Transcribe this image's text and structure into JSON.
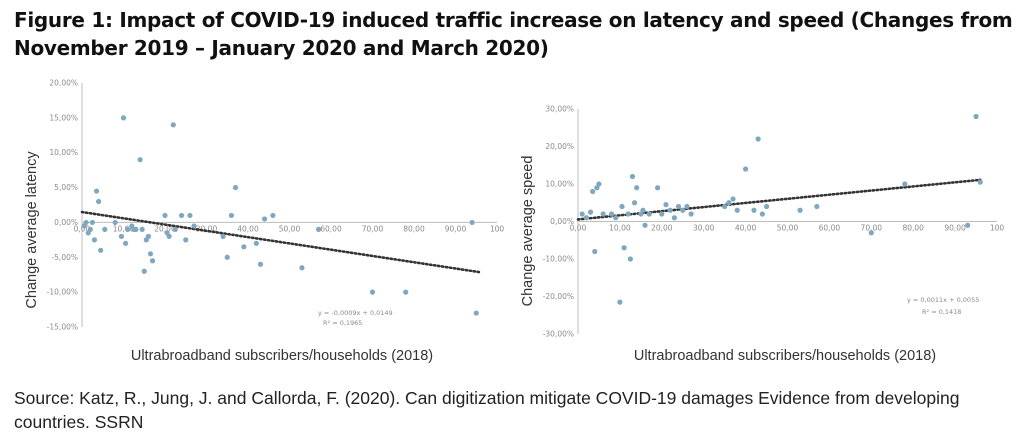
{
  "figure_title": "Figure 1: Impact of COVID-19 induced traffic increase on latency and speed  (Changes from November 2019 – January 2020 and March 2020)",
  "source_text": "Source: Katz, R., Jung, J. and Callorda, F. (2020). Can digitization mitigate COVID-19 damages Evidence from developing countries. SSRN",
  "colors": {
    "point": "#7fa7bf",
    "trend": "#333333",
    "axis": "#bdbdbd",
    "text": "#8a8a8a"
  },
  "chart_data": [
    {
      "type": "scatter",
      "ylabel": "Change average latency",
      "xlabel": "Ultrabroadband  subscribers/households  (2018)",
      "xlim": [
        0,
        100
      ],
      "ylim": [
        -15,
        20
      ],
      "x_ticks": [
        "0,00",
        "10,00",
        "20,00",
        "30,00",
        "40,00",
        "50,00",
        "60,00",
        "70,00",
        "80,00",
        "90,00",
        "100"
      ],
      "y_ticks": [
        "20,00%",
        "15,00%",
        "10,00%",
        "5,00%",
        "0,00%",
        "-5,00%",
        "-10,00%",
        "-15,00%"
      ],
      "grid": false,
      "trendline": {
        "slope": -0.0009,
        "intercept": 0.0149,
        "equation": "y = -0,0009x + 0,0149",
        "r2": "R² = 0,1965"
      },
      "points": [
        [
          0.5,
          -0.5
        ],
        [
          1,
          0
        ],
        [
          1.5,
          -1.5
        ],
        [
          2,
          -1
        ],
        [
          2.5,
          0
        ],
        [
          3,
          -2.5
        ],
        [
          3.5,
          4.5
        ],
        [
          4,
          3
        ],
        [
          4.5,
          -4
        ],
        [
          5.5,
          -1
        ],
        [
          8,
          0
        ],
        [
          9.5,
          -2
        ],
        [
          10,
          15
        ],
        [
          10.5,
          -3
        ],
        [
          11,
          -1
        ],
        [
          12,
          -0.5
        ],
        [
          12.5,
          -1
        ],
        [
          13,
          -1
        ],
        [
          14,
          9
        ],
        [
          14.5,
          -1
        ],
        [
          15,
          -7
        ],
        [
          15.5,
          -2.5
        ],
        [
          16,
          -2
        ],
        [
          16.5,
          -4.5
        ],
        [
          17,
          -5.5
        ],
        [
          20,
          1
        ],
        [
          20.5,
          -1.5
        ],
        [
          21,
          -2
        ],
        [
          22,
          14
        ],
        [
          22.5,
          -1
        ],
        [
          24,
          1
        ],
        [
          25,
          -2.5
        ],
        [
          26,
          1
        ],
        [
          27,
          -0.5
        ],
        [
          34,
          -2
        ],
        [
          35,
          -5
        ],
        [
          36,
          1
        ],
        [
          37,
          5
        ],
        [
          39,
          -3.5
        ],
        [
          42,
          -3
        ],
        [
          43,
          -6
        ],
        [
          44,
          0.5
        ],
        [
          46,
          1
        ],
        [
          53,
          -6.5
        ],
        [
          57,
          -1
        ],
        [
          70,
          -10
        ],
        [
          78,
          -10
        ],
        [
          94,
          0
        ],
        [
          95,
          -13
        ]
      ]
    },
    {
      "type": "scatter",
      "ylabel": "Change  average speed",
      "xlabel": "Ultrabroadband  subscribers/households  (2018)",
      "xlim": [
        0,
        100
      ],
      "ylim": [
        -30,
        30
      ],
      "x_ticks": [
        "0,00",
        "10,00",
        "20,00",
        "30,00",
        "40,00",
        "50,00",
        "60,00",
        "70,00",
        "80,00",
        "90,00",
        "100"
      ],
      "y_ticks": [
        "30,00%",
        "20,00%",
        "10,00%",
        "0,00%",
        "-10,00%",
        "-20,00%",
        "-30,00%"
      ],
      "grid": false,
      "trendline": {
        "slope": 0.0011,
        "intercept": 0.0055,
        "equation": "y = 0,0011x + 0,0055",
        "r2": "R² = 0,1418"
      },
      "points": [
        [
          1,
          2
        ],
        [
          2,
          1
        ],
        [
          3,
          2.5
        ],
        [
          3.5,
          8
        ],
        [
          4,
          -8
        ],
        [
          4.5,
          9
        ],
        [
          5,
          10
        ],
        [
          6,
          2
        ],
        [
          8,
          2
        ],
        [
          9,
          1
        ],
        [
          10,
          -21.5
        ],
        [
          10.5,
          4
        ],
        [
          11,
          -7
        ],
        [
          12,
          2
        ],
        [
          12.5,
          -10
        ],
        [
          13,
          12
        ],
        [
          13.5,
          5
        ],
        [
          14,
          9
        ],
        [
          15,
          2
        ],
        [
          15.5,
          3
        ],
        [
          16,
          -1
        ],
        [
          17,
          2
        ],
        [
          19,
          9
        ],
        [
          20,
          2
        ],
        [
          21,
          4.5
        ],
        [
          22,
          3
        ],
        [
          23,
          1
        ],
        [
          24,
          4
        ],
        [
          25,
          3
        ],
        [
          26,
          4
        ],
        [
          27,
          2
        ],
        [
          35,
          4
        ],
        [
          36,
          5
        ],
        [
          37,
          6
        ],
        [
          38,
          3
        ],
        [
          40,
          14
        ],
        [
          42,
          3
        ],
        [
          43,
          22
        ],
        [
          44,
          2
        ],
        [
          45,
          4
        ],
        [
          53,
          3
        ],
        [
          57,
          4
        ],
        [
          70,
          -3
        ],
        [
          78,
          10
        ],
        [
          93,
          -1
        ],
        [
          95,
          28
        ],
        [
          96,
          10.5
        ]
      ]
    }
  ]
}
